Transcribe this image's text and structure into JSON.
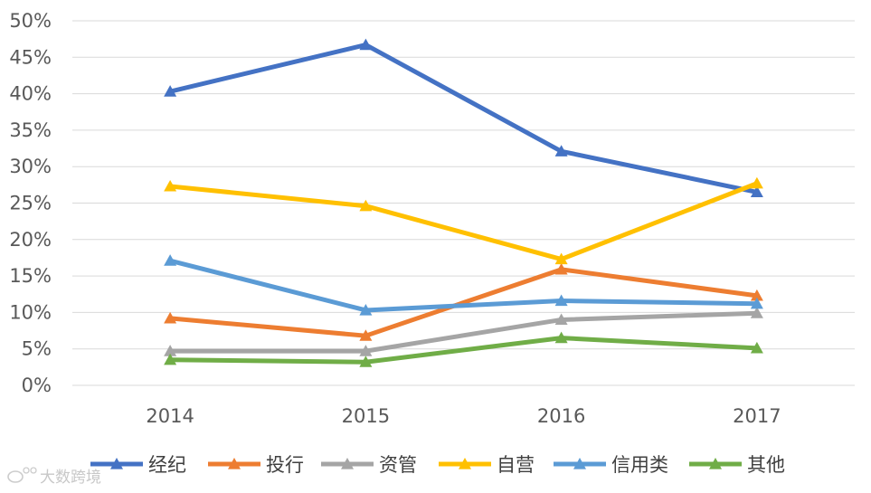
{
  "chart_data": {
    "type": "line",
    "title": "",
    "xlabel": "",
    "ylabel": "",
    "categories": [
      "2014",
      "2015",
      "2016",
      "2017"
    ],
    "ylim": [
      0,
      50
    ],
    "yticks": [
      0,
      5,
      10,
      15,
      20,
      25,
      30,
      35,
      40,
      45,
      50
    ],
    "ytick_labels": [
      "0%",
      "5%",
      "10%",
      "15%",
      "20%",
      "25%",
      "30%",
      "35%",
      "40%",
      "45%",
      "50%"
    ],
    "grid": true,
    "legend_position": "bottom",
    "marker": "triangle",
    "series": [
      {
        "name": "经纪",
        "color": "#4472C4",
        "values": [
          40.3,
          46.7,
          32.1,
          26.5
        ]
      },
      {
        "name": "投行",
        "color": "#ED7D31",
        "values": [
          9.2,
          6.8,
          15.9,
          12.3
        ]
      },
      {
        "name": "资管",
        "color": "#A5A5A5",
        "values": [
          4.7,
          4.7,
          9.0,
          9.9
        ]
      },
      {
        "name": "自营",
        "color": "#FFC000",
        "values": [
          27.3,
          24.6,
          17.3,
          27.7
        ]
      },
      {
        "name": "信用类",
        "color": "#5B9BD5",
        "values": [
          17.1,
          10.3,
          11.6,
          11.2
        ]
      },
      {
        "name": "其他",
        "color": "#70AD47",
        "values": [
          3.5,
          3.2,
          6.5,
          5.1
        ]
      }
    ]
  },
  "watermark": {
    "text": "大数跨境",
    "icon": "weibo-logo"
  }
}
